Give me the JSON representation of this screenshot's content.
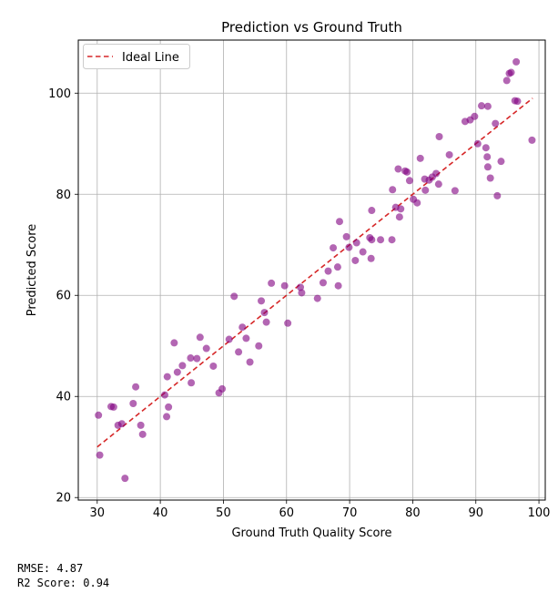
{
  "chart_data": {
    "type": "scatter",
    "title": "Prediction vs Ground Truth",
    "xlabel": "Ground Truth Quality Score",
    "ylabel": "Predicted Score",
    "xlim": [
      27,
      101
    ],
    "ylim": [
      19.5,
      110.5
    ],
    "xticks": [
      30,
      40,
      50,
      60,
      70,
      80,
      90,
      100
    ],
    "yticks": [
      20,
      40,
      60,
      80,
      100
    ],
    "grid": true,
    "legend": {
      "location": "top-left",
      "entries": [
        {
          "label": "Ideal Line",
          "style": "dashed",
          "color": "#d62728"
        }
      ]
    },
    "ideal_line": {
      "x": [
        30,
        99
      ],
      "y": [
        30,
        99
      ]
    },
    "point_color": "#800080",
    "points": [
      [
        30.2,
        36.3
      ],
      [
        30.4,
        28.4
      ],
      [
        32.2,
        38.0
      ],
      [
        32.6,
        37.9
      ],
      [
        33.3,
        34.3
      ],
      [
        33.9,
        34.6
      ],
      [
        34.4,
        23.8
      ],
      [
        35.7,
        38.6
      ],
      [
        36.1,
        41.9
      ],
      [
        36.9,
        34.3
      ],
      [
        37.2,
        32.5
      ],
      [
        40.7,
        40.3
      ],
      [
        41.0,
        36.0
      ],
      [
        41.1,
        43.9
      ],
      [
        41.3,
        37.9
      ],
      [
        42.2,
        50.6
      ],
      [
        42.7,
        44.8
      ],
      [
        43.5,
        46.1
      ],
      [
        44.8,
        47.6
      ],
      [
        44.9,
        42.7
      ],
      [
        45.8,
        47.5
      ],
      [
        46.3,
        51.7
      ],
      [
        47.3,
        49.5
      ],
      [
        48.4,
        46.0
      ],
      [
        49.3,
        40.7
      ],
      [
        49.8,
        41.5
      ],
      [
        50.9,
        51.3
      ],
      [
        51.7,
        59.8
      ],
      [
        52.4,
        48.8
      ],
      [
        53.0,
        53.7
      ],
      [
        53.6,
        51.5
      ],
      [
        54.2,
        46.8
      ],
      [
        55.6,
        50.0
      ],
      [
        56.0,
        58.9
      ],
      [
        56.5,
        56.6
      ],
      [
        56.8,
        54.7
      ],
      [
        57.6,
        62.4
      ],
      [
        59.7,
        61.9
      ],
      [
        60.2,
        54.5
      ],
      [
        62.2,
        61.6
      ],
      [
        62.4,
        60.5
      ],
      [
        64.9,
        59.4
      ],
      [
        65.8,
        62.5
      ],
      [
        66.6,
        64.8
      ],
      [
        67.4,
        69.4
      ],
      [
        68.1,
        65.6
      ],
      [
        68.2,
        61.9
      ],
      [
        68.4,
        74.6
      ],
      [
        69.5,
        71.6
      ],
      [
        69.9,
        69.5
      ],
      [
        70.9,
        66.9
      ],
      [
        71.1,
        70.4
      ],
      [
        72.1,
        68.6
      ],
      [
        73.2,
        71.4
      ],
      [
        73.4,
        67.3
      ],
      [
        73.5,
        76.8
      ],
      [
        73.5,
        71.0
      ],
      [
        74.9,
        71.0
      ],
      [
        76.7,
        71.0
      ],
      [
        76.8,
        80.9
      ],
      [
        77.3,
        77.4
      ],
      [
        77.7,
        85.0
      ],
      [
        77.9,
        75.5
      ],
      [
        78.1,
        77.1
      ],
      [
        78.8,
        84.6
      ],
      [
        79.1,
        84.4
      ],
      [
        79.5,
        82.7
      ],
      [
        80.1,
        79.0
      ],
      [
        80.7,
        78.3
      ],
      [
        81.2,
        87.1
      ],
      [
        81.9,
        83.0
      ],
      [
        82.0,
        80.8
      ],
      [
        82.6,
        82.8
      ],
      [
        83.1,
        83.4
      ],
      [
        83.7,
        84.1
      ],
      [
        84.1,
        82.0
      ],
      [
        84.2,
        91.4
      ],
      [
        85.8,
        87.8
      ],
      [
        86.7,
        80.7
      ],
      [
        88.3,
        94.4
      ],
      [
        89.1,
        94.7
      ],
      [
        89.8,
        95.4
      ],
      [
        90.3,
        90.0
      ],
      [
        90.9,
        97.5
      ],
      [
        91.6,
        89.2
      ],
      [
        91.8,
        87.4
      ],
      [
        91.9,
        97.4
      ],
      [
        91.9,
        85.4
      ],
      [
        92.3,
        83.2
      ],
      [
        93.1,
        94.0
      ],
      [
        93.4,
        79.7
      ],
      [
        94.0,
        86.5
      ],
      [
        94.9,
        102.5
      ],
      [
        95.3,
        103.9
      ],
      [
        95.6,
        104.1
      ],
      [
        96.2,
        98.5
      ],
      [
        96.4,
        106.2
      ],
      [
        96.6,
        98.4
      ],
      [
        98.9,
        90.7
      ]
    ]
  },
  "metrics": {
    "rmse": "RMSE: 4.87",
    "r2": "R2 Score: 0.94"
  }
}
